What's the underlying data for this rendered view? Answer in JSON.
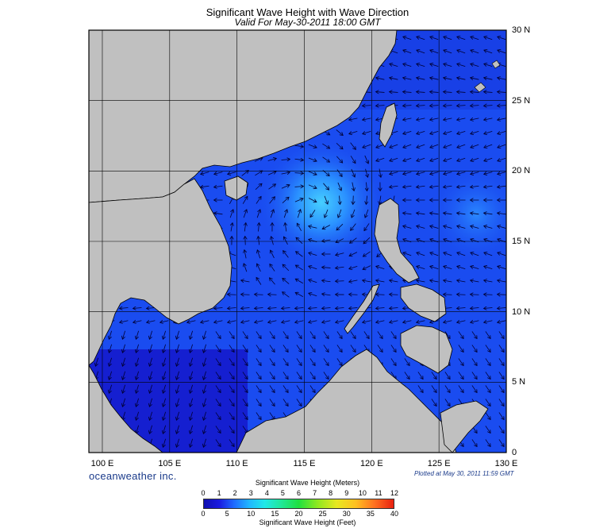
{
  "header": {
    "title": "Significant Wave Height with Wave Direction",
    "subtitle": "Valid For May-30-2011 18:00 GMT"
  },
  "map": {
    "lon_labels": [
      "100 E",
      "105 E",
      "110 E",
      "115 E",
      "120 E",
      "125 E",
      "130 E"
    ],
    "lat_labels": [
      "30 N",
      "25 N",
      "20 N",
      "15 N",
      "10 N",
      "5 N",
      "0"
    ],
    "lon_range": [
      99,
      130
    ],
    "lat_range": [
      0,
      30
    ],
    "colors": {
      "land": "#c0c0c0",
      "coast": "#000000",
      "grid": "#000000",
      "arrow": "#000033",
      "sea_low": "#1414c8",
      "sea_mid": "#1a4cf0",
      "sea_high": "#40c8ff"
    }
  },
  "footer": {
    "brand": "oceanweather inc.",
    "plotted": "Plotted at May 30, 2011 11:59 GMT"
  },
  "colorbar": {
    "title_top": "Significant Wave Height (Meters)",
    "title_bottom": "Significant Wave Height (Feet)",
    "meters_ticks": [
      "0",
      "1",
      "2",
      "3",
      "4",
      "5",
      "6",
      "7",
      "8",
      "9",
      "10",
      "11",
      "12"
    ],
    "feet_ticks": [
      "0",
      "5",
      "10",
      "15",
      "20",
      "25",
      "30",
      "35",
      "40"
    ]
  }
}
